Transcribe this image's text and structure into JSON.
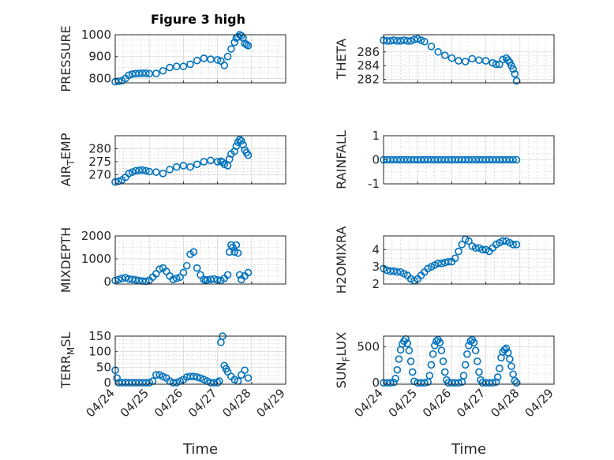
{
  "figure": {
    "title": "Figure 3 high"
  },
  "colors": {
    "series": "#0072bd"
  },
  "chart_data": [
    {
      "type": "scatter",
      "ylabel": "PRESSURE",
      "ylabel_sub": "",
      "ylim": [
        780,
        1000
      ],
      "yticks": [
        800,
        900,
        1000
      ],
      "ytick_labels": [
        "800",
        "900",
        "1000"
      ],
      "xlim": [
        "04/24",
        "04/29"
      ],
      "show_xticklabels": false,
      "xlabel": "",
      "x": [
        0.0,
        0.1,
        0.2,
        0.3,
        0.4,
        0.5,
        0.6,
        0.7,
        0.8,
        0.9,
        1.0,
        1.2,
        1.4,
        1.6,
        1.8,
        2.0,
        2.2,
        2.4,
        2.6,
        2.8,
        3.0,
        3.1,
        3.2,
        3.3,
        3.4,
        3.5,
        3.55,
        3.6,
        3.65,
        3.7,
        3.75,
        3.8,
        3.85,
        3.9
      ],
      "y": [
        785,
        787,
        790,
        800,
        815,
        820,
        822,
        823,
        824,
        824,
        822,
        823,
        835,
        850,
        855,
        855,
        865,
        882,
        892,
        888,
        885,
        880,
        860,
        900,
        935,
        965,
        985,
        990,
        1000,
        995,
        985,
        960,
        955,
        950
      ]
    },
    {
      "type": "scatter",
      "ylabel": "THETA",
      "ylabel_sub": "",
      "ylim": [
        281.5,
        288.5
      ],
      "yticks": [
        282,
        284,
        286
      ],
      "ytick_labels": [
        "282",
        "284",
        "286"
      ],
      "xlim": [
        "04/24",
        "04/29"
      ],
      "show_xticklabels": false,
      "xlabel": "",
      "x": [
        0.0,
        0.1,
        0.2,
        0.3,
        0.4,
        0.5,
        0.6,
        0.7,
        0.8,
        0.9,
        1.0,
        1.1,
        1.2,
        1.4,
        1.6,
        1.8,
        2.0,
        2.2,
        2.4,
        2.6,
        2.8,
        3.0,
        3.2,
        3.3,
        3.4,
        3.5,
        3.6,
        3.65,
        3.7,
        3.75,
        3.8,
        3.85,
        3.9
      ],
      "y": [
        287.7,
        287.6,
        287.6,
        287.7,
        287.6,
        287.6,
        287.7,
        287.6,
        287.6,
        287.8,
        287.9,
        287.7,
        287.5,
        286.8,
        286.0,
        285.5,
        285.1,
        284.7,
        284.6,
        285.0,
        284.8,
        284.7,
        284.4,
        284.2,
        284.2,
        284.9,
        285.1,
        284.8,
        284.5,
        284.0,
        283.5,
        282.8,
        281.8
      ]
    },
    {
      "type": "scatter",
      "ylabel": "AIR",
      "ylabel_sub": "T",
      "ylabel_after": "EMP",
      "ylim": [
        266.5,
        285
      ],
      "yticks": [
        270,
        275,
        280
      ],
      "ytick_labels": [
        "270",
        "275",
        "280"
      ],
      "xlim": [
        "04/24",
        "04/29"
      ],
      "show_xticklabels": false,
      "xlabel": "",
      "x": [
        0.0,
        0.1,
        0.2,
        0.3,
        0.4,
        0.5,
        0.6,
        0.7,
        0.8,
        0.9,
        1.0,
        1.2,
        1.4,
        1.6,
        1.8,
        2.0,
        2.2,
        2.4,
        2.6,
        2.8,
        3.0,
        3.1,
        3.15,
        3.2,
        3.3,
        3.35,
        3.4,
        3.5,
        3.55,
        3.6,
        3.65,
        3.7,
        3.75,
        3.8,
        3.85,
        3.9
      ],
      "y": [
        267.2,
        267.5,
        268,
        269,
        270.5,
        271,
        271.5,
        271.7,
        271.8,
        271.5,
        271.2,
        271,
        270.5,
        272,
        273,
        273.5,
        273,
        274,
        275,
        275.5,
        275,
        275.2,
        274.8,
        274,
        273.5,
        276,
        278,
        279,
        281,
        282.5,
        283.5,
        283,
        281.5,
        279.5,
        278.5,
        277.5
      ]
    },
    {
      "type": "scatter",
      "ylabel": "RAINFALL",
      "ylabel_sub": "",
      "ylim": [
        -1,
        1
      ],
      "yticks": [
        -1,
        0,
        1
      ],
      "ytick_labels": [
        "-1",
        "0",
        "1"
      ],
      "xlim": [
        "04/24",
        "04/29"
      ],
      "show_xticklabels": false,
      "xlabel": "",
      "x": [
        0.0,
        0.1,
        0.2,
        0.3,
        0.4,
        0.5,
        0.6,
        0.7,
        0.8,
        0.9,
        1.0,
        1.1,
        1.2,
        1.3,
        1.4,
        1.5,
        1.6,
        1.7,
        1.8,
        1.9,
        2.0,
        2.1,
        2.2,
        2.3,
        2.4,
        2.5,
        2.6,
        2.7,
        2.8,
        2.9,
        3.0,
        3.1,
        3.2,
        3.3,
        3.4,
        3.5,
        3.6,
        3.7,
        3.8,
        3.9
      ],
      "y": [
        0,
        0,
        0,
        0,
        0,
        0,
        0,
        0,
        0,
        0,
        0,
        0,
        0,
        0,
        0,
        0,
        0,
        0,
        0,
        0,
        0,
        0,
        0,
        0,
        0,
        0,
        0,
        0,
        0,
        0,
        0,
        0,
        0,
        0,
        0,
        0,
        0,
        0,
        0,
        0
      ]
    },
    {
      "type": "scatter",
      "ylabel": "MIXDEPTH",
      "ylabel_sub": "",
      "ylim": [
        -100,
        2000
      ],
      "yticks": [
        0,
        1000,
        2000
      ],
      "ytick_labels": [
        "0",
        "1000",
        "2000"
      ],
      "xlim": [
        "04/24",
        "04/29"
      ],
      "show_xticklabels": false,
      "xlabel": "",
      "x": [
        0.0,
        0.1,
        0.2,
        0.3,
        0.4,
        0.5,
        0.6,
        0.7,
        0.8,
        0.9,
        1.0,
        1.1,
        1.2,
        1.3,
        1.4,
        1.5,
        1.6,
        1.7,
        1.8,
        1.9,
        2.0,
        2.1,
        2.2,
        2.3,
        2.4,
        2.5,
        2.6,
        2.65,
        2.7,
        2.8,
        2.9,
        3.0,
        3.1,
        3.2,
        3.3,
        3.35,
        3.4,
        3.45,
        3.5,
        3.55,
        3.6,
        3.65,
        3.7,
        3.8,
        3.9
      ],
      "y": [
        50,
        100,
        150,
        180,
        120,
        100,
        80,
        50,
        30,
        20,
        60,
        200,
        350,
        550,
        600,
        450,
        250,
        100,
        150,
        200,
        400,
        700,
        1200,
        1300,
        600,
        300,
        100,
        50,
        80,
        100,
        120,
        80,
        60,
        150,
        300,
        1300,
        1600,
        1500,
        1300,
        1600,
        1250,
        300,
        100,
        250,
        400
      ]
    },
    {
      "type": "scatter",
      "ylabel": "H2OMIXRA",
      "ylabel_sub": "",
      "ylim": [
        2,
        4.8
      ],
      "yticks": [
        2,
        3,
        4
      ],
      "ytick_labels": [
        "2",
        "3",
        "4"
      ],
      "xlim": [
        "04/24",
        "04/29"
      ],
      "show_xticklabels": false,
      "xlabel": "",
      "x": [
        0.0,
        0.1,
        0.2,
        0.3,
        0.4,
        0.5,
        0.6,
        0.7,
        0.8,
        0.9,
        1.0,
        1.1,
        1.2,
        1.3,
        1.4,
        1.5,
        1.6,
        1.7,
        1.8,
        1.9,
        2.0,
        2.1,
        2.2,
        2.3,
        2.4,
        2.5,
        2.6,
        2.7,
        2.8,
        2.9,
        3.0,
        3.1,
        3.2,
        3.3,
        3.4,
        3.5,
        3.6,
        3.7,
        3.8,
        3.9
      ],
      "y": [
        2.9,
        2.8,
        2.75,
        2.75,
        2.7,
        2.7,
        2.6,
        2.5,
        2.3,
        2.2,
        2.3,
        2.5,
        2.7,
        2.9,
        3.0,
        3.1,
        3.2,
        3.2,
        3.25,
        3.3,
        3.3,
        3.5,
        3.9,
        4.3,
        4.6,
        4.5,
        4.2,
        4.1,
        4.1,
        4.0,
        4.0,
        3.9,
        4.1,
        4.3,
        4.4,
        4.5,
        4.5,
        4.4,
        4.3,
        4.3
      ]
    },
    {
      "type": "scatter",
      "ylabel": "TERR",
      "ylabel_sub": "M",
      "ylabel_after": "SL",
      "ylim": [
        -5,
        150
      ],
      "yticks": [
        0,
        50,
        100,
        150
      ],
      "ytick_labels": [
        "0",
        "50",
        "100",
        "150"
      ],
      "xlim": [
        "04/24",
        "04/29"
      ],
      "show_xticklabels": true,
      "xlabel": "Time",
      "x": [
        0.0,
        0.05,
        0.1,
        0.2,
        0.3,
        0.4,
        0.5,
        0.6,
        0.7,
        0.8,
        0.9,
        1.0,
        1.1,
        1.2,
        1.3,
        1.4,
        1.5,
        1.6,
        1.7,
        1.8,
        1.9,
        2.0,
        2.1,
        2.2,
        2.3,
        2.4,
        2.5,
        2.6,
        2.7,
        2.8,
        2.9,
        3.0,
        3.05,
        3.1,
        3.15,
        3.2,
        3.25,
        3.3,
        3.4,
        3.5,
        3.6,
        3.7,
        3.8,
        3.9
      ],
      "y": [
        40,
        15,
        0,
        0,
        0,
        0,
        0,
        0,
        0,
        0,
        0,
        0,
        5,
        25,
        25,
        20,
        15,
        5,
        0,
        0,
        5,
        10,
        18,
        20,
        20,
        18,
        15,
        10,
        5,
        0,
        0,
        0,
        5,
        130,
        150,
        55,
        45,
        35,
        20,
        10,
        5,
        25,
        40,
        15
      ]
    },
    {
      "type": "scatter",
      "ylabel": "SUN",
      "ylabel_sub": "F",
      "ylabel_after": "LUX",
      "ylim": [
        -20,
        650
      ],
      "yticks": [
        0,
        500
      ],
      "ytick_labels": [
        "0",
        "500"
      ],
      "xlim": [
        "04/24",
        "04/29"
      ],
      "show_xticklabels": true,
      "xlabel": "Time",
      "x": [
        0.0,
        0.1,
        0.2,
        0.3,
        0.35,
        0.4,
        0.45,
        0.5,
        0.55,
        0.6,
        0.65,
        0.7,
        0.75,
        0.8,
        0.85,
        0.9,
        1.0,
        1.1,
        1.2,
        1.3,
        1.35,
        1.4,
        1.45,
        1.5,
        1.55,
        1.6,
        1.65,
        1.7,
        1.75,
        1.8,
        1.85,
        1.9,
        2.0,
        2.1,
        2.2,
        2.3,
        2.35,
        2.4,
        2.45,
        2.5,
        2.55,
        2.6,
        2.65,
        2.7,
        2.75,
        2.8,
        2.85,
        2.9,
        3.0,
        3.1,
        3.2,
        3.3,
        3.35,
        3.4,
        3.45,
        3.5,
        3.55,
        3.6,
        3.65,
        3.7,
        3.75,
        3.8,
        3.85,
        3.9
      ],
      "y": [
        0,
        0,
        0,
        5,
        60,
        180,
        330,
        460,
        540,
        580,
        610,
        550,
        450,
        300,
        150,
        20,
        0,
        0,
        0,
        10,
        100,
        250,
        400,
        520,
        580,
        600,
        560,
        450,
        300,
        150,
        40,
        0,
        0,
        0,
        0,
        10,
        100,
        250,
        400,
        520,
        580,
        600,
        560,
        450,
        300,
        150,
        40,
        0,
        0,
        0,
        0,
        10,
        80,
        200,
        350,
        430,
        460,
        480,
        420,
        330,
        230,
        120,
        30,
        0
      ]
    }
  ]
}
